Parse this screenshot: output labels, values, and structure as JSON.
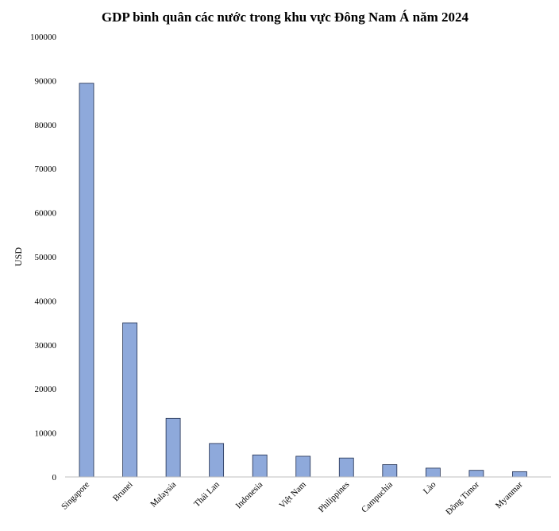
{
  "chart_data": {
    "type": "bar",
    "title": "GDP bình quân các nước trong khu vực Đông Nam Á năm 2024",
    "xlabel": "",
    "ylabel": "USD",
    "ylim": [
      0,
      100000
    ],
    "yticks": [
      0,
      10000,
      20000,
      30000,
      40000,
      50000,
      60000,
      70000,
      80000,
      90000,
      100000
    ],
    "grid": false,
    "legend": "none",
    "categories": [
      "Singapore",
      "Brunei",
      "Malaysia",
      "Thái Lan",
      "Indonesia",
      "Việt Nam",
      "Philippines",
      "Campuchia",
      "Lào",
      "Đông Timor",
      "Myanmar"
    ],
    "values": [
      89400,
      35000,
      13300,
      7600,
      5000,
      4700,
      4300,
      2800,
      2000,
      1500,
      1200
    ],
    "colors": {
      "bar_fill": "#8EA9DB",
      "bar_stroke": "#1F2D4E"
    }
  }
}
